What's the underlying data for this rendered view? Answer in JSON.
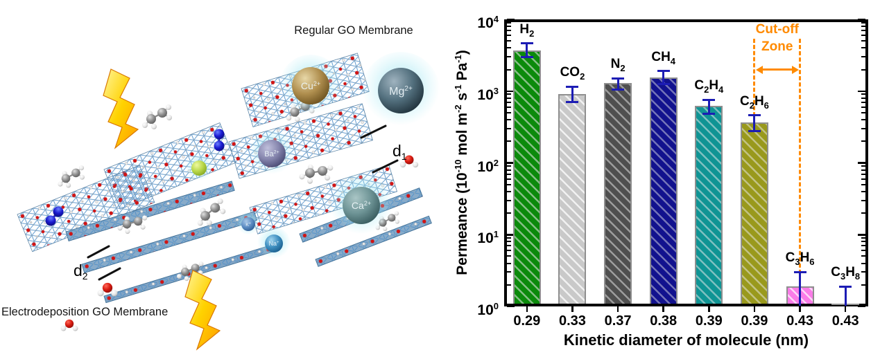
{
  "illustration": {
    "regular_membrane_label": "Regular GO Membrane",
    "electrodeposition_membrane_label": "Electrodeposition GO Membrane",
    "d_labels": {
      "d1": {
        "base": "d",
        "sub": "1"
      },
      "d2": {
        "base": "d",
        "sub": "2"
      }
    },
    "ions": {
      "cu": {
        "base": "Cu",
        "charge": "2+"
      },
      "mg": {
        "base": "Mg",
        "charge": "2+"
      },
      "ba": {
        "base": "Ba",
        "charge": "2+"
      },
      "ca": {
        "base": "Ca",
        "charge": "2+"
      },
      "k": {
        "base": "K",
        "charge": "+"
      },
      "na": {
        "base": "Na",
        "charge": "+"
      }
    }
  },
  "chart_data": {
    "type": "bar",
    "yscale": "log",
    "ylim": [
      1,
      10000
    ],
    "grid": false,
    "legend": "none",
    "xlabel": "Kinetic diameter of molecule (nm)",
    "ylabel": "Permeance (10⁻¹⁰ mol m⁻² s⁻¹ Pa⁻¹)",
    "ylabel_parts": [
      [
        "t",
        "Permeance (10"
      ],
      [
        "sup",
        "-10"
      ],
      [
        "t",
        " mol m"
      ],
      [
        "sup",
        "-2"
      ],
      [
        "t",
        " s"
      ],
      [
        "sup",
        "-1"
      ],
      [
        "t",
        " Pa"
      ],
      [
        "sup",
        "-1"
      ],
      [
        "t",
        ")"
      ]
    ],
    "ytick_exponents": [
      0,
      1,
      2,
      3,
      4
    ],
    "categories": [
      "0.29",
      "0.33",
      "0.37",
      "0.38",
      "0.39",
      "0.39",
      "0.43",
      "0.43"
    ],
    "bars": [
      {
        "formula": "H2",
        "kinetic_diameter_nm": "0.29",
        "permeance": 3700,
        "err_hi": 4600,
        "err_lo": 3000,
        "color": "#0b8a0b",
        "hatch": "rgba(235,235,235,0.55)"
      },
      {
        "formula": "CO2",
        "kinetic_diameter_nm": "0.33",
        "permeance": 900,
        "err_hi": 1150,
        "err_lo": 700,
        "color": "#c9c9c9",
        "hatch": "rgba(255,255,255,0.75)"
      },
      {
        "formula": "N2",
        "kinetic_diameter_nm": "0.37",
        "permeance": 1300,
        "err_hi": 1500,
        "err_lo": 1050,
        "color": "#4f4f4f",
        "hatch": "rgba(235,235,235,0.5)"
      },
      {
        "formula": "CH4",
        "kinetic_diameter_nm": "0.38",
        "permeance": 1550,
        "err_hi": 1900,
        "err_lo": 1250,
        "color": "#12128e",
        "hatch": "rgba(235,235,235,0.45)"
      },
      {
        "formula": "C2H4",
        "kinetic_diameter_nm": "0.39",
        "permeance": 620,
        "err_hi": 760,
        "err_lo": 480,
        "color": "#0f9494",
        "hatch": "rgba(235,235,235,0.5)"
      },
      {
        "formula": "C2H6",
        "kinetic_diameter_nm": "0.39",
        "permeance": 370,
        "err_hi": 460,
        "err_lo": 280,
        "color": "#99991c",
        "hatch": "rgba(235,235,235,0.5)"
      },
      {
        "formula": "C3H6",
        "kinetic_diameter_nm": "0.43",
        "permeance": 1.9,
        "err_hi": 3.0,
        "err_lo": 1.03,
        "color": "#fa7ce8",
        "hatch": "rgba(255,255,255,0.7)"
      },
      {
        "formula": "C3H8",
        "kinetic_diameter_nm": "0.43",
        "permeance": 1.1,
        "err_hi": 1.9,
        "err_lo": 1.03,
        "color": "#f5820a",
        "hatch": "rgba(255,255,255,0.6)"
      }
    ],
    "annotations": {
      "cutoff": {
        "line1": "Cut-off",
        "line2": "Zone",
        "color": "#ff8a00",
        "between_bars": [
          5,
          6
        ]
      }
    },
    "colors": {
      "error_bar": "#1c1cb4",
      "bar_edge": "#8f8f8f",
      "axis": "#000000"
    }
  }
}
